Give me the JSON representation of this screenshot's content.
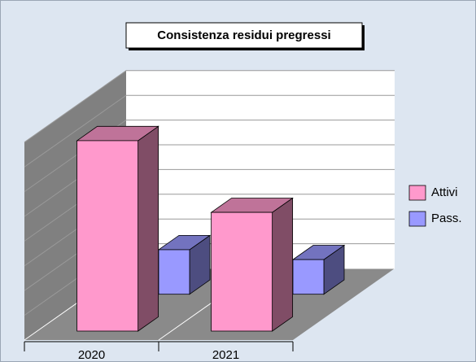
{
  "chart_data": {
    "type": "bar3d",
    "title": "Consistenza residui pregressi",
    "categories": [
      "2020",
      "2021"
    ],
    "series": [
      {
        "name": "Attivi",
        "color": "#ff99cc",
        "values": [
          7.7,
          4.8
        ]
      },
      {
        "name": "Pass.",
        "color": "#9999ff",
        "values": [
          1.8,
          1.4
        ]
      }
    ],
    "ylim": [
      0,
      8
    ],
    "yticks": [
      0,
      1,
      2,
      3,
      4,
      5,
      6,
      7,
      8
    ],
    "grid": true,
    "legend": "right"
  }
}
